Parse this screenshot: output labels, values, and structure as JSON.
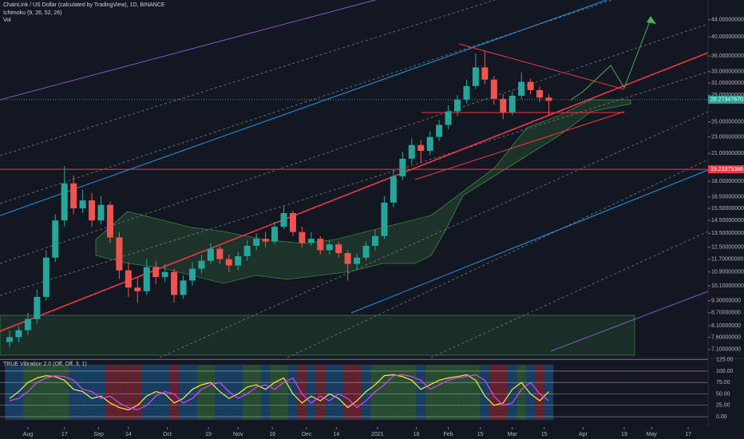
{
  "chart_data": [
    {
      "type": "candlestick",
      "title": "ChainLink / US Dollar (calculated by TradingView), 1D, BINANCE",
      "indicators": [
        "Ichimoku (9, 26, 52, 26)",
        "Vol"
      ],
      "up_color": "#26a69a",
      "down_color": "#ef5350",
      "log_scale": true,
      "x": [
        -8,
        -4,
        0,
        4,
        8,
        12,
        16,
        20,
        24,
        28,
        32,
        36,
        40,
        44,
        48,
        52,
        56,
        60,
        64,
        68,
        72,
        76,
        80,
        84,
        88,
        92,
        96,
        100,
        104,
        108,
        112,
        116,
        120,
        124,
        128,
        132,
        136,
        140,
        144,
        148,
        152,
        156,
        160,
        164,
        168,
        172,
        176,
        180,
        184,
        188,
        192,
        196,
        200,
        204,
        208,
        212,
        216,
        220,
        224,
        228
      ],
      "open": [
        7.4,
        7.6,
        7.9,
        8.4,
        9.5,
        11.8,
        14.5,
        17.8,
        15.5,
        16.2,
        14.5,
        15.8,
        13.2,
        11.0,
        10.0,
        9.8,
        11.2,
        10.6,
        10.9,
        9.6,
        10.4,
        11.1,
        11.6,
        12.4,
        11.7,
        11.3,
        11.9,
        12.6,
        13.1,
        12.9,
        14.0,
        15.1,
        13.6,
        12.8,
        13.1,
        12.3,
        12.7,
        12.1,
        11.4,
        11.8,
        12.6,
        13.3,
        16.0,
        18.5,
        20.4,
        22.0,
        21.3,
        23.0,
        24.6,
        26.5,
        28.3,
        30.5,
        33.8,
        31.6,
        28.4,
        26.4,
        28.9,
        31.2,
        29.8,
        28.6
      ],
      "high": [
        7.9,
        8.1,
        8.7,
        9.9,
        12.3,
        15.0,
        19.6,
        18.6,
        17.2,
        16.9,
        16.6,
        16.1,
        13.6,
        11.5,
        10.6,
        11.7,
        11.6,
        11.4,
        11.1,
        10.7,
        11.5,
        12.0,
        12.8,
        12.6,
        12.0,
        12.2,
        13.0,
        13.5,
        13.6,
        14.4,
        15.7,
        15.3,
        14.0,
        13.6,
        13.3,
        13.0,
        12.9,
        12.3,
        12.1,
        12.9,
        13.8,
        16.6,
        19.2,
        21.2,
        22.8,
        22.6,
        23.7,
        25.3,
        27.4,
        29.0,
        31.6,
        36.5,
        36.9,
        32.2,
        29.1,
        29.6,
        32.9,
        31.8,
        30.4,
        29.2
      ],
      "low": [
        7.2,
        7.4,
        7.7,
        8.2,
        9.3,
        11.5,
        14.0,
        15.0,
        15.1,
        14.0,
        14.2,
        12.8,
        10.5,
        9.5,
        9.2,
        9.6,
        10.2,
        10.3,
        9.2,
        9.4,
        10.1,
        10.8,
        11.4,
        11.4,
        10.9,
        11.0,
        11.6,
        12.3,
        12.5,
        12.7,
        13.8,
        13.3,
        12.5,
        12.6,
        12.0,
        12.0,
        11.8,
        10.4,
        11.0,
        11.6,
        12.3,
        13.1,
        15.6,
        18.1,
        19.8,
        20.0,
        20.8,
        22.5,
        24.0,
        25.8,
        27.7,
        30.0,
        30.8,
        27.5,
        25.4,
        25.9,
        28.4,
        29.1,
        27.9,
        26.0
      ],
      "close": [
        7.6,
        7.9,
        8.4,
        9.5,
        11.8,
        14.5,
        17.8,
        15.5,
        16.2,
        14.5,
        15.8,
        13.2,
        11.0,
        10.0,
        9.8,
        11.2,
        10.6,
        10.9,
        9.6,
        10.4,
        11.1,
        11.6,
        12.4,
        11.7,
        11.3,
        11.9,
        12.6,
        13.1,
        12.9,
        14.0,
        15.1,
        13.6,
        12.8,
        13.1,
        12.3,
        12.7,
        12.1,
        11.4,
        11.8,
        12.6,
        13.3,
        16.0,
        18.5,
        20.4,
        22.0,
        21.3,
        23.0,
        24.6,
        26.5,
        28.3,
        30.5,
        33.8,
        31.6,
        28.4,
        26.4,
        28.9,
        31.2,
        29.8,
        28.6,
        28.1
      ],
      "xlim": [
        -12.2,
        297.7
      ],
      "xticks": [
        {
          "value": 0,
          "label": "Aug"
        },
        {
          "value": 16,
          "label": "17"
        },
        {
          "value": 31,
          "label": "Sep"
        },
        {
          "value": 44,
          "label": "14"
        },
        {
          "value": 61,
          "label": "Oct"
        },
        {
          "value": 79,
          "label": "19"
        },
        {
          "value": 92,
          "label": "Nov"
        },
        {
          "value": 107,
          "label": "16"
        },
        {
          "value": 122,
          "label": "Dec"
        },
        {
          "value": 135,
          "label": "14"
        },
        {
          "value": 153,
          "label": "2021"
        },
        {
          "value": 170,
          "label": "18"
        },
        {
          "value": 184,
          "label": "Feb"
        },
        {
          "value": 198,
          "label": "15"
        },
        {
          "value": 212,
          "label": "Mar"
        },
        {
          "value": 226,
          "label": "15"
        },
        {
          "value": 243,
          "label": "Apr"
        },
        {
          "value": 261,
          "label": "19"
        },
        {
          "value": 273,
          "label": "May"
        },
        {
          "value": 289,
          "label": "17"
        }
      ],
      "ylim": [
        6.79,
        49.07
      ],
      "yticks": [
        {
          "value": 44,
          "label": "44.00000000"
        },
        {
          "value": 40,
          "label": "40.00000000"
        },
        {
          "value": 36,
          "label": "36.00000000"
        },
        {
          "value": 33,
          "label": "33.00000000"
        },
        {
          "value": 31,
          "label": "31.00000000"
        },
        {
          "value": 29,
          "label": "29.00000000"
        },
        {
          "value": 25,
          "label": "25.00000000"
        },
        {
          "value": 23,
          "label": "23.00000000"
        },
        {
          "value": 21,
          "label": "21.00000000"
        },
        {
          "value": 18,
          "label": "18.00000000"
        },
        {
          "value": 16.5,
          "label": "16.50000000"
        },
        {
          "value": 15.5,
          "label": "15.50000000"
        },
        {
          "value": 14.5,
          "label": "14.50000000"
        },
        {
          "value": 13.5,
          "label": "13.50000000"
        },
        {
          "value": 12.5,
          "label": "12.50000000"
        },
        {
          "value": 11.7,
          "label": "11.70000000"
        },
        {
          "value": 10.9,
          "label": "10.90000000"
        },
        {
          "value": 10.1,
          "label": "10.10000000"
        },
        {
          "value": 9.3,
          "label": "9.30000000"
        },
        {
          "value": 8.7,
          "label": "8.70000000"
        },
        {
          "value": 8.1,
          "label": "8.10000000"
        },
        {
          "value": 7.6,
          "label": "7.60000000"
        },
        {
          "value": 7.1,
          "label": "7.10000000"
        }
      ],
      "price_labels": [
        {
          "value": 19.23375386,
          "color": "#f23645"
        },
        {
          "value": 28.2734767,
          "label": "28.27347670",
          "color": "#26a69a"
        }
      ]
    },
    {
      "type": "line",
      "title": "TRUE Vibration 2.0 (Off, Off, 3, 1)",
      "series": [
        {
          "color": "#ffeb3b",
          "values": [
            40,
            55,
            75,
            85,
            90,
            88,
            80,
            60,
            55,
            40,
            45,
            30,
            20,
            15,
            25,
            45,
            55,
            50,
            30,
            40,
            60,
            70,
            75,
            55,
            40,
            50,
            65,
            70,
            60,
            75,
            85,
            50,
            30,
            45,
            35,
            50,
            40,
            20,
            35,
            55,
            70,
            90,
            92,
            88,
            80,
            60,
            70,
            80,
            85,
            88,
            92,
            80,
            45,
            25,
            30,
            60,
            75,
            50,
            35,
            55
          ]
        },
        {
          "color": "#e040fb",
          "values": [
            35,
            40,
            55,
            75,
            85,
            90,
            88,
            80,
            60,
            55,
            40,
            45,
            30,
            20,
            15,
            25,
            45,
            55,
            50,
            30,
            40,
            60,
            70,
            75,
            55,
            40,
            50,
            65,
            70,
            60,
            75,
            85,
            50,
            30,
            45,
            35,
            50,
            40,
            20,
            35,
            55,
            70,
            90,
            92,
            88,
            80,
            60,
            70,
            80,
            85,
            88,
            92,
            80,
            45,
            25,
            30,
            60,
            75,
            50,
            35
          ]
        }
      ],
      "ylim": [
        -17.5,
        128
      ],
      "yticks": [
        {
          "value": 125,
          "label": "125.00"
        },
        {
          "value": 100,
          "label": "100.00"
        },
        {
          "value": 75,
          "label": "75.00"
        },
        {
          "value": 50,
          "label": "50.00"
        },
        {
          "value": 25,
          "label": "25.00"
        },
        {
          "value": 0,
          "label": "0.00"
        }
      ]
    }
  ]
}
